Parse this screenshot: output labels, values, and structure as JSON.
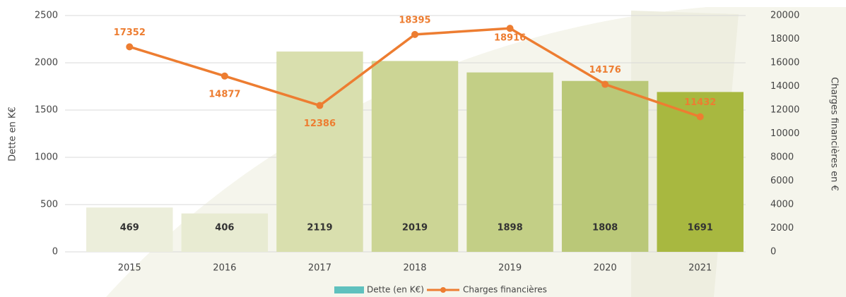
{
  "chart_data": {
    "type": "bar",
    "categories": [
      "2015",
      "2016",
      "2017",
      "2018",
      "2019",
      "2020",
      "2021"
    ],
    "series": [
      {
        "name": "Dette (en K€)",
        "type": "bar",
        "color": "#5fc1be",
        "bar_colors": [
          "#eceedb",
          "#e8ebd2",
          "#d9dfae",
          "#ccd595",
          "#c3cf86",
          "#bac878",
          "#a8b840"
        ],
        "values": [
          469,
          406,
          2119,
          2019,
          1898,
          1808,
          1691
        ]
      },
      {
        "name": "Charges financières",
        "type": "line",
        "color": "#ed7d31",
        "axis": "y2",
        "values": [
          17352,
          14877,
          12386,
          18395,
          18916,
          14176,
          11432
        ]
      }
    ],
    "ylabel": "Dette en K€",
    "y2label": "Charges financières en €",
    "ylim": [
      0,
      2500
    ],
    "yticks": [
      0,
      500,
      1000,
      1500,
      2000,
      2500
    ],
    "y2lim": [
      0,
      20000
    ],
    "y2ticks": [
      0,
      2000,
      4000,
      6000,
      8000,
      10000,
      12000,
      14000,
      16000,
      18000,
      20000
    ],
    "grid": true,
    "legend": "bottom"
  }
}
